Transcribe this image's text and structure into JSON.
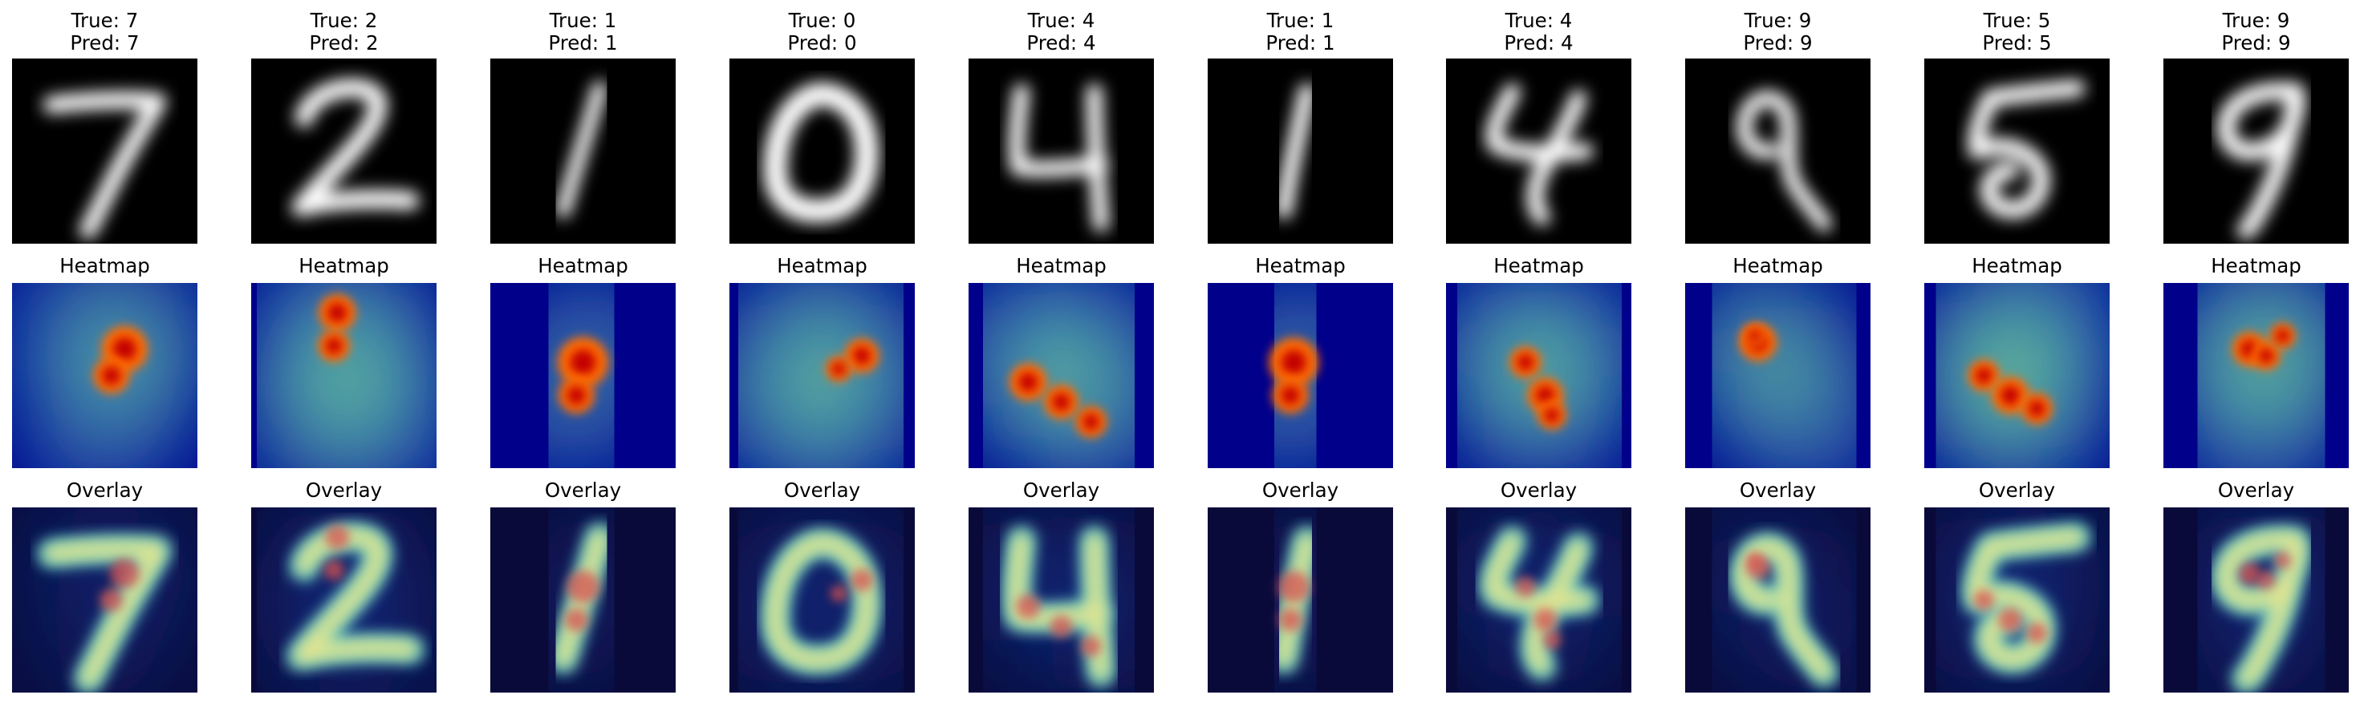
{
  "figure": {
    "columns": [
      {
        "true_label": "True: 7",
        "pred_label": "Pred: 7",
        "digit": "7"
      },
      {
        "true_label": "True: 2",
        "pred_label": "Pred: 2",
        "digit": "2"
      },
      {
        "true_label": "True: 1",
        "pred_label": "Pred: 1",
        "digit": "1"
      },
      {
        "true_label": "True: 0",
        "pred_label": "Pred: 0",
        "digit": "0"
      },
      {
        "true_label": "True: 4",
        "pred_label": "Pred: 4",
        "digit": "4"
      },
      {
        "true_label": "True: 1",
        "pred_label": "Pred: 1",
        "digit": "1b"
      },
      {
        "true_label": "True: 4",
        "pred_label": "Pred: 4",
        "digit": "4b"
      },
      {
        "true_label": "True: 9",
        "pred_label": "Pred: 9",
        "digit": "9"
      },
      {
        "true_label": "True: 5",
        "pred_label": "Pred: 5",
        "digit": "5"
      },
      {
        "true_label": "True: 9",
        "pred_label": "Pred: 9",
        "digit": "9b"
      }
    ],
    "rows": [
      {
        "key": "input",
        "title": ""
      },
      {
        "key": "heatmap",
        "title": "Heatmap"
      },
      {
        "key": "overlay",
        "title": "Overlay"
      }
    ],
    "colors": {
      "background": "#ffffff",
      "input_background": "#000000",
      "stroke": "#ffffff",
      "heatmap_background": "#00008b",
      "overlay_background": "#0a0a3a"
    },
    "colormap": "jet"
  }
}
